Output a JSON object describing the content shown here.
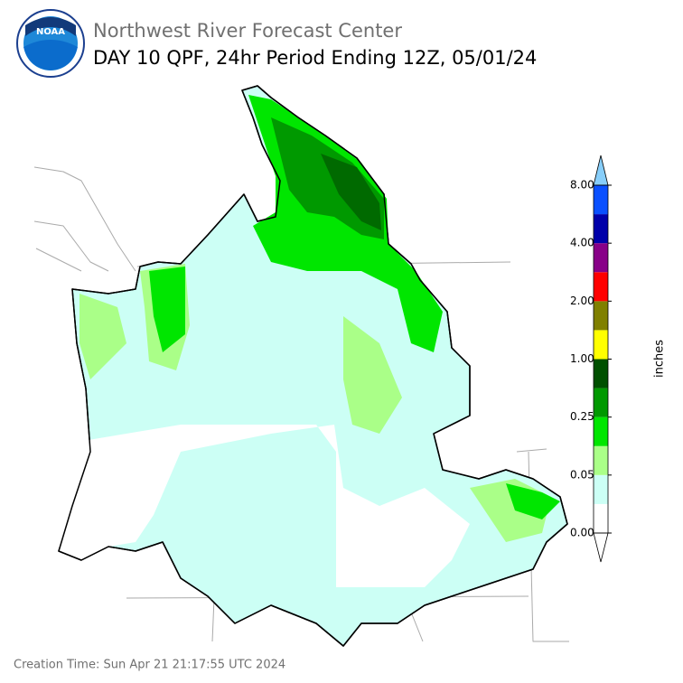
{
  "header": {
    "org": "Northwest River Forecast Center",
    "title": "DAY 10 QPF, 24hr Period Ending 12Z, 05/01/24",
    "logo": "NOAA"
  },
  "colorbar": {
    "unit": "inches",
    "colors": [
      "#ffffff",
      "#ccfff5",
      "#aaff88",
      "#00e600",
      "#009900",
      "#005000",
      "#ffff00",
      "#808000",
      "#ff0000",
      "#880088",
      "#0000aa",
      "#0a50ff"
    ],
    "over_color": "#87cefa",
    "ticks": [
      {
        "value": 0,
        "label": "0.00"
      },
      {
        "value": 0.05,
        "label": "0.05"
      },
      {
        "value": 0.25,
        "label": "0.25"
      },
      {
        "value": 1,
        "label": "1.00"
      },
      {
        "value": 2,
        "label": "2.00"
      },
      {
        "value": 4,
        "label": "4.00"
      },
      {
        "value": 8,
        "label": "8.00"
      }
    ]
  },
  "footer": {
    "creation": "Creation Time: Sun Apr 21 21:17:55 UTC 2024"
  }
}
